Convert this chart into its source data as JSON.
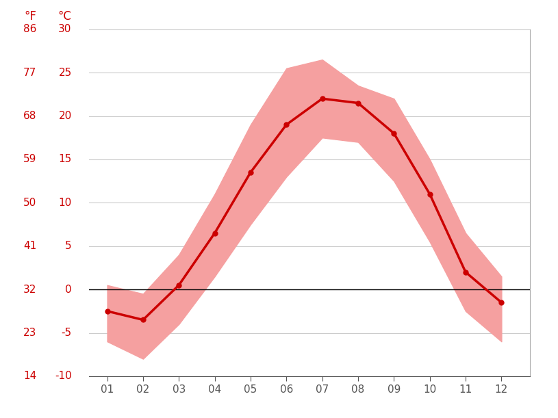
{
  "months": [
    1,
    2,
    3,
    4,
    5,
    6,
    7,
    8,
    9,
    10,
    11,
    12
  ],
  "month_labels": [
    "01",
    "02",
    "03",
    "04",
    "05",
    "06",
    "07",
    "08",
    "09",
    "10",
    "11",
    "12"
  ],
  "avg_temp_c": [
    -2.5,
    -3.5,
    0.5,
    6.5,
    13.5,
    19.0,
    22.0,
    21.5,
    18.0,
    11.0,
    2.0,
    -1.5
  ],
  "max_temp_c": [
    0.5,
    -0.5,
    4.0,
    11.0,
    19.0,
    25.5,
    26.5,
    23.5,
    22.0,
    15.0,
    6.5,
    1.5
  ],
  "min_temp_c": [
    -6.0,
    -8.0,
    -4.0,
    1.5,
    7.5,
    13.0,
    17.5,
    17.0,
    12.5,
    5.5,
    -2.5,
    -6.0
  ],
  "band_color": "#f5a0a0",
  "line_color": "#cc0000",
  "zero_line_color": "#000000",
  "grid_color": "#cccccc",
  "background_color": "#ffffff",
  "ylim_c": [
    -10,
    30
  ],
  "ylabel_c_ticks": [
    -10,
    -5,
    0,
    5,
    10,
    15,
    20,
    25,
    30
  ],
  "ylabel_f_ticks": [
    14,
    23,
    32,
    41,
    50,
    59,
    68,
    77,
    86
  ],
  "left_label_f": "°F",
  "left_label_c": "°C",
  "label_color": "#cc0000",
  "tick_color": "#cc0000",
  "tick_label_color_bottom": "#555555",
  "line_width": 2.5,
  "marker_size": 5,
  "figsize": [
    8.15,
    6.11
  ],
  "dpi": 100
}
